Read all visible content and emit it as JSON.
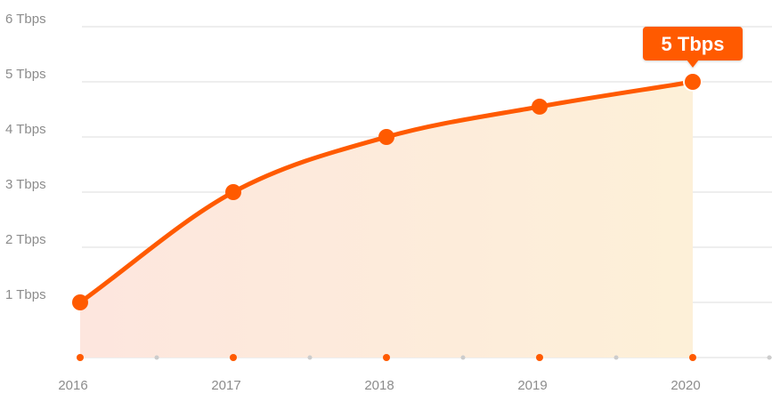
{
  "chart_data": {
    "type": "area",
    "x": [
      "2016",
      "2017",
      "2018",
      "2019",
      "2020"
    ],
    "series": [
      {
        "values": [
          1,
          3,
          4,
          4.55,
          5
        ]
      }
    ],
    "y_tick_labels": [
      "1 Tbps",
      "2 Tbps",
      "3 Tbps",
      "4 Tbps",
      "5 Tbps",
      "6 Tbps"
    ],
    "y_ticks": [
      1,
      2,
      3,
      4,
      5,
      6
    ],
    "ylim": [
      0,
      6
    ],
    "grid": true,
    "callout": {
      "text": "5 Tbps",
      "target_index": 4
    },
    "colors": {
      "line": "#ff5a00",
      "marker": "#ff5a00",
      "fill_start": "#fde6de",
      "fill_end": "#fdf0d8",
      "grid": "#dcdcdc",
      "tick_label": "#8c8c8c",
      "callout_bg": "#ff5a00",
      "minor_dot": "#cccccc"
    }
  }
}
